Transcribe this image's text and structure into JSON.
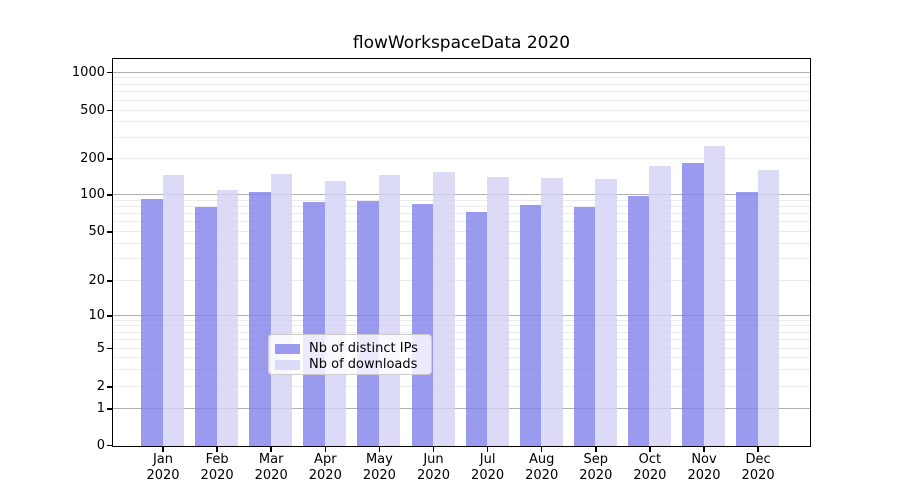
{
  "title": "flowWorkspaceData 2020",
  "chart_data": {
    "type": "bar",
    "title": "flowWorkspaceData 2020",
    "categories": [
      "Jan",
      "Feb",
      "Mar",
      "Apr",
      "May",
      "Jun",
      "Jul",
      "Aug",
      "Sep",
      "Oct",
      "Nov",
      "Dec"
    ],
    "category_year": "2020",
    "series": [
      {
        "name": "Nb of distinct IPs",
        "color": "#9a9aee",
        "color_rgba": "rgba(129,129,234,0.8)",
        "values": [
          94,
          80,
          107,
          88,
          90,
          86,
          74,
          83,
          81,
          100,
          188,
          108
        ]
      },
      {
        "name": "Nb of downloads",
        "color": "#dbdbf8",
        "color_rgba": "rgba(210,210,246,0.8)",
        "values": [
          148,
          111,
          152,
          131,
          148,
          157,
          142,
          140,
          138,
          177,
          258,
          165
        ]
      }
    ],
    "yticks": [
      0,
      1,
      2,
      5,
      10,
      20,
      50,
      100,
      200,
      500,
      1000
    ],
    "ylim_top_approx": 1280,
    "scale": "symlog",
    "grid": true,
    "major_grid_values": [
      1,
      10,
      100,
      1000
    ],
    "major_grid_color": "#b0b0b0",
    "minor_grid_color": "#ebebeb",
    "legend_position": "lower center",
    "xlabel": "",
    "ylabel": ""
  }
}
